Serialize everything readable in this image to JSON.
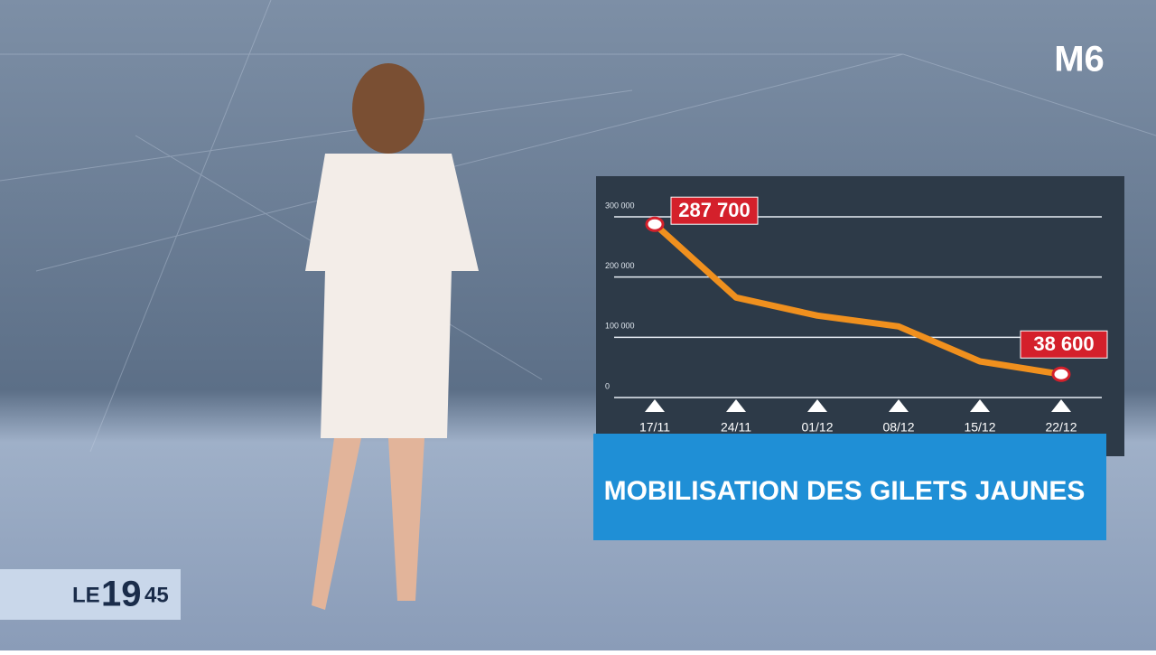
{
  "chart_data": {
    "type": "line",
    "title": "MOBILISATION DES GILETS JAUNES",
    "categories": [
      "17/11",
      "24/11",
      "01/12",
      "08/12",
      "15/12",
      "22/12"
    ],
    "series": [
      {
        "color": "#f0901e",
        "values": [
          287700,
          166000,
          136000,
          118000,
          60000,
          38600
        ],
        "value_labels": [
          "287 700",
          null,
          null,
          null,
          null,
          "38 600"
        ]
      }
    ],
    "ylim": [
      0,
      300000
    ],
    "yticks": [
      0,
      {
        "value": 100000,
        "label": "100 000"
      },
      {
        "value": 200000,
        "label": "200 000"
      },
      {
        "value": 300000,
        "label": "300 000"
      }
    ],
    "grid": true
  },
  "broadcast": {
    "channel_logo": "M6",
    "show_logo": {
      "prefix": "LE",
      "hour": "19",
      "minute": "45"
    }
  }
}
